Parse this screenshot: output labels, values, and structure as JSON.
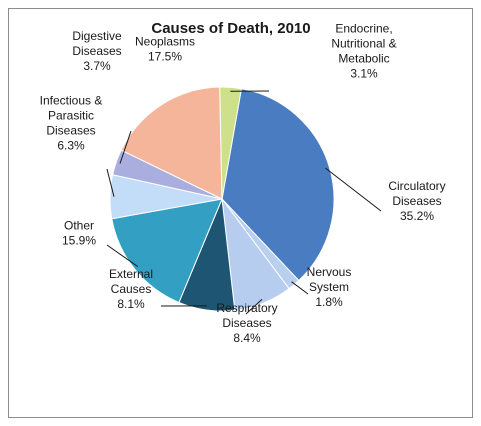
{
  "chart_data": {
    "type": "pie",
    "title": "Causes of Death, 2010",
    "start_angle_deg": 80,
    "direction": "clockwise",
    "legend": "none",
    "slices": [
      {
        "name": "Circulatory Diseases",
        "name_lines": [
          "Circulatory",
          "Diseases"
        ],
        "value": 35.2,
        "label": "35.2%",
        "color": "#4a7cc2"
      },
      {
        "name": "Nervous System",
        "name_lines": [
          "Nervous",
          "System"
        ],
        "value": 1.8,
        "label": "1.8%",
        "color": "#b8d0ee"
      },
      {
        "name": "Respiratory Diseases",
        "name_lines": [
          "Respiratory",
          "Diseases"
        ],
        "value": 8.4,
        "label": "8.4%",
        "color": "#b7cdf0"
      },
      {
        "name": "External Causes",
        "name_lines": [
          "External",
          "Causes"
        ],
        "value": 8.1,
        "label": "8.1%",
        "color": "#1d5573"
      },
      {
        "name": "Other",
        "name_lines": [
          "Other"
        ],
        "value": 15.9,
        "label": "15.9%",
        "color": "#33a0c3"
      },
      {
        "name": "Infectious & Parasitic Diseases",
        "name_lines": [
          "Infectious &",
          "Parasitic",
          "Diseases"
        ],
        "value": 6.3,
        "label": "6.3%",
        "color": "#c3dcf7"
      },
      {
        "name": "Digestive Diseases",
        "name_lines": [
          "Digestive",
          "Diseases"
        ],
        "value": 3.7,
        "label": "3.7%",
        "color": "#a9aede"
      },
      {
        "name": "Neoplasms",
        "name_lines": [
          "Neoplasms"
        ],
        "value": 17.5,
        "label": "17.5%",
        "color": "#f4b59a"
      },
      {
        "name": "Endocrine, Nutritional & Metabolic",
        "name_lines": [
          "Endocrine,",
          "Nutritional &",
          "Metabolic"
        ],
        "value": 3.1,
        "label": "3.1%",
        "color": "#cfe08a"
      }
    ]
  }
}
